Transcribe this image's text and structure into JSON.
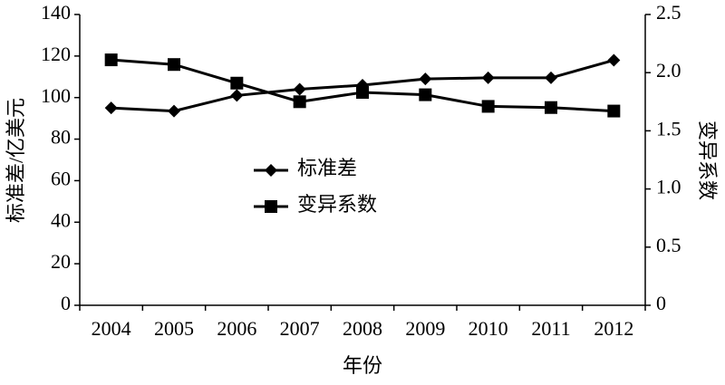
{
  "chart_data": {
    "type": "line",
    "xlabel": "年份",
    "ylabel": "标准差/亿美元",
    "y2label": "变异系数",
    "categories": [
      "2004",
      "2005",
      "2006",
      "2007",
      "2008",
      "2009",
      "2010",
      "2011",
      "2012"
    ],
    "series": [
      {
        "name": "标准差",
        "color": "#000000",
        "marker": "diamond",
        "values": [
          95,
          93.5,
          101,
          104,
          106,
          109,
          109.5,
          109.5,
          118
        ]
      },
      {
        "name": "变异系数",
        "color": "#000000",
        "marker": "square",
        "axis": "y2",
        "values": [
          2.11,
          2.07,
          1.91,
          1.75,
          1.83,
          1.81,
          1.71,
          1.7,
          1.67
        ]
      }
    ],
    "ylim": [
      0,
      140
    ],
    "yticks": [
      0,
      20,
      40,
      60,
      80,
      100,
      120,
      140
    ],
    "y2lim": [
      0,
      2.5
    ],
    "y2ticks": [
      0,
      0.5,
      {
        "value": 1,
        "label": "1.0"
      },
      1.5,
      {
        "value": 2,
        "label": "2.0"
      },
      2.5
    ],
    "grid": false,
    "legend": "center"
  }
}
